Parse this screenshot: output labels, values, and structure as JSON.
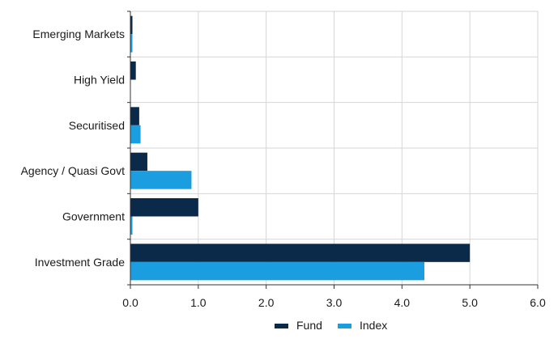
{
  "chart_data": {
    "type": "bar",
    "orientation": "horizontal",
    "categories": [
      "Emerging Markets",
      "High Yield",
      "Securitised",
      "Agency / Quasi Govt",
      "Government",
      "Investment Grade"
    ],
    "series": [
      {
        "name": "Fund",
        "color": "#0b2a4a",
        "values": [
          0.03,
          0.08,
          0.13,
          0.25,
          1.0,
          5.0
        ]
      },
      {
        "name": "Index",
        "color": "#1a9ee0",
        "values": [
          0.03,
          0.0,
          0.15,
          0.9,
          0.03,
          4.33
        ]
      }
    ],
    "xlim": [
      0,
      6
    ],
    "xticks": [
      "0.0",
      "1.0",
      "2.0",
      "3.0",
      "4.0",
      "5.0",
      "6.0"
    ],
    "grid": true,
    "legend_position": "bottom-center",
    "title": "",
    "xlabel": "",
    "ylabel": ""
  }
}
